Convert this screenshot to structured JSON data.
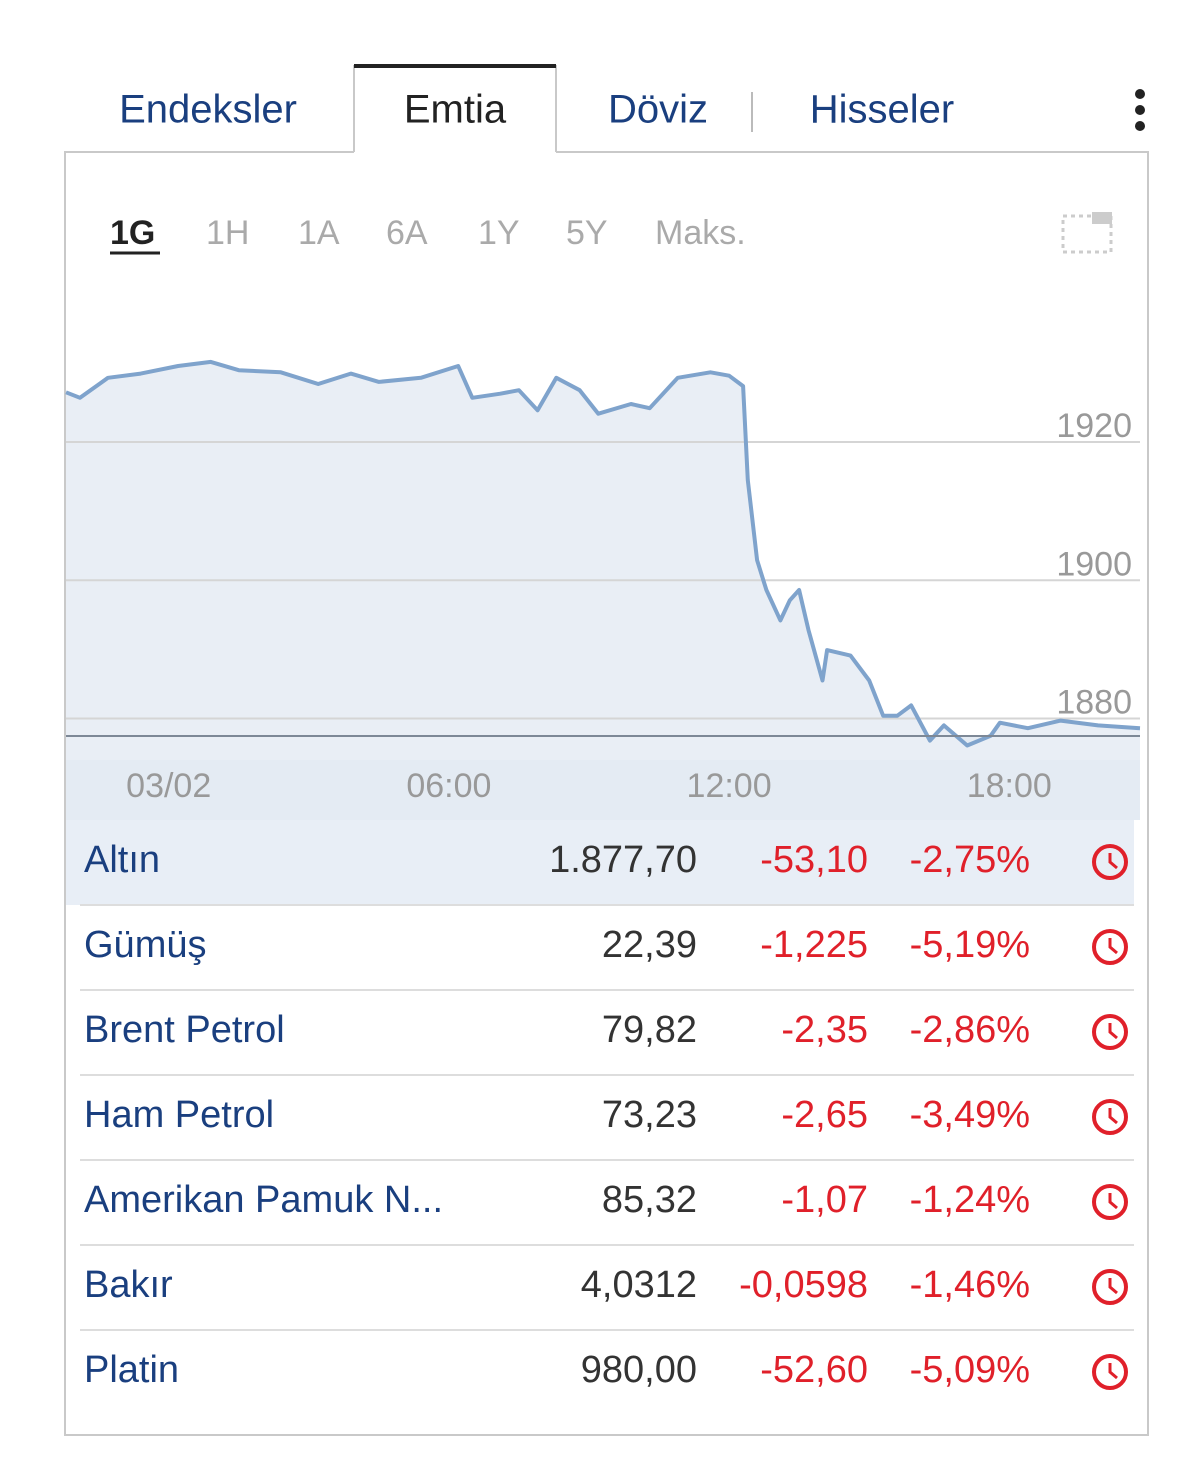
{
  "tabs": [
    "Endeksler",
    "Emtia",
    "Döviz",
    "Hisseler"
  ],
  "periods": [
    "1G",
    "1H",
    "1A",
    "6A",
    "1Y",
    "5Y",
    "Maks."
  ],
  "chart_data": {
    "type": "line",
    "color": "#7fa3cc",
    "fill": "#e9eef5",
    "grid": true,
    "x": [
      -2.2,
      -1.9,
      -1.3,
      -0.6,
      0.2,
      0.9,
      1.5,
      2.4,
      3.2,
      3.9,
      4.5,
      5.4,
      6.2,
      6.5,
      7.1,
      7.5,
      7.9,
      8.3,
      8.8,
      9.2,
      9.9,
      10.3,
      10.9,
      11.6,
      12.0,
      12.3,
      12.4,
      12.6,
      12.8,
      13.1,
      13.3,
      13.5,
      13.7,
      14.0,
      14.1,
      14.6,
      15.0,
      15.3,
      15.6,
      15.9,
      16.3,
      16.6,
      17.1,
      17.6,
      17.8,
      18.4,
      19.1,
      19.9,
      20.8
    ],
    "series": [
      {
        "values": [
          1927.2,
          1926.4,
          1929.3,
          1929.9,
          1931.0,
          1931.6,
          1930.4,
          1930.1,
          1928.4,
          1929.9,
          1928.7,
          1929.3,
          1931.0,
          1926.4,
          1927.0,
          1927.5,
          1924.6,
          1929.3,
          1927.5,
          1924.1,
          1925.5,
          1924.9,
          1929.3,
          1930.1,
          1929.6,
          1928.1,
          1914.5,
          1902.9,
          1898.6,
          1894.2,
          1897.1,
          1898.6,
          1892.8,
          1885.5,
          1889.9,
          1889.1,
          1885.5,
          1880.4,
          1880.4,
          1881.9,
          1876.8,
          1879.0,
          1876.1,
          1877.5,
          1879.4,
          1878.6,
          1879.7,
          1879.0,
          1878.6
        ]
      }
    ],
    "xlim": [
      -2.2,
      20.8
    ],
    "xticks": [
      {
        "value": 0,
        "label": "03/02"
      },
      {
        "value": 6,
        "label": "06:00"
      },
      {
        "value": 12,
        "label": "12:00"
      },
      {
        "value": 18,
        "label": "18:00"
      }
    ],
    "ylim": [
      1874,
      1942
    ],
    "yticks": [
      1880,
      1900,
      1920
    ]
  },
  "table": {
    "rows": [
      {
        "name": "Altın",
        "price": "1.877,70",
        "change": "-53,10",
        "percent": "-2,75%"
      },
      {
        "name": "Gümüş",
        "price": "22,39",
        "change": "-1,225",
        "percent": "-5,19%"
      },
      {
        "name": "Brent Petrol",
        "price": "79,82",
        "change": "-2,35",
        "percent": "-2,86%"
      },
      {
        "name": "Ham Petrol",
        "price": "73,23",
        "change": "-2,65",
        "percent": "-3,49%"
      },
      {
        "name": "Amerikan Pamuk N...",
        "price": "85,32",
        "change": "-1,07",
        "percent": "-1,24%"
      },
      {
        "name": "Bakır",
        "price": "4,0312",
        "change": "-0,0598",
        "percent": "-1,46%"
      },
      {
        "name": "Platin",
        "price": "980,00",
        "change": "-52,60",
        "percent": "-5,09%"
      }
    ]
  }
}
